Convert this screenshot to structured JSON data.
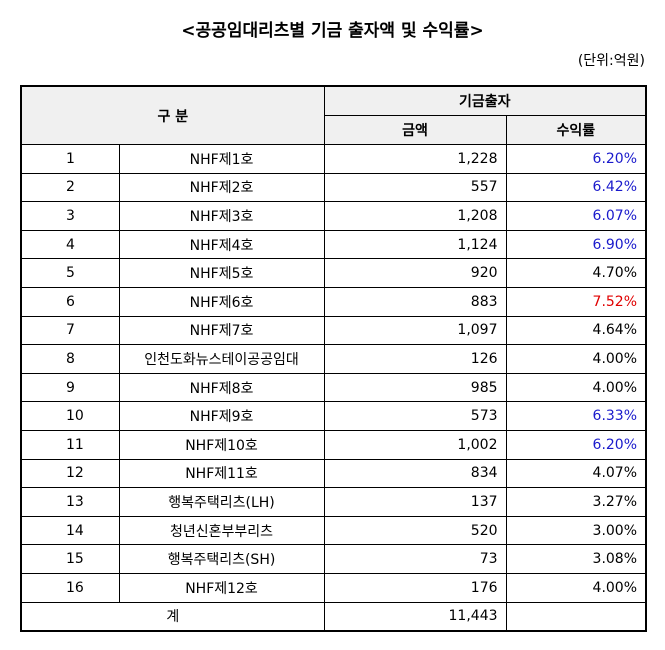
{
  "header": {
    "title": "<공공임대리츠별 기금 출자액 및 수익률>",
    "unit": "(단위:억원)"
  },
  "table": {
    "columns": {
      "group": "구 분",
      "fund": "기금출자",
      "amount": "금액",
      "rate": "수익률"
    },
    "rows": [
      {
        "no": "1",
        "name": "NHF제1호",
        "amount": "1,228",
        "rate": "6.20%",
        "color": "#1a1acc"
      },
      {
        "no": "2",
        "name": "NHF제2호",
        "amount": "557",
        "rate": "6.42%",
        "color": "#1a1acc"
      },
      {
        "no": "3",
        "name": "NHF제3호",
        "amount": "1,208",
        "rate": "6.07%",
        "color": "#1a1acc"
      },
      {
        "no": "4",
        "name": "NHF제4호",
        "amount": "1,124",
        "rate": "6.90%",
        "color": "#1a1acc"
      },
      {
        "no": "5",
        "name": "NHF제5호",
        "amount": "920",
        "rate": "4.70%",
        "color": "#000000"
      },
      {
        "no": "6",
        "name": "NHF제6호",
        "amount": "883",
        "rate": "7.52%",
        "color": "#e00000"
      },
      {
        "no": "7",
        "name": "NHF제7호",
        "amount": "1,097",
        "rate": "4.64%",
        "color": "#000000"
      },
      {
        "no": "8",
        "name": "인천도화뉴스테이공공임대",
        "amount": "126",
        "rate": "4.00%",
        "color": "#000000"
      },
      {
        "no": "9",
        "name": "NHF제8호",
        "amount": "985",
        "rate": "4.00%",
        "color": "#000000"
      },
      {
        "no": "10",
        "name": "NHF제9호",
        "amount": "573",
        "rate": "6.33%",
        "color": "#1a1acc"
      },
      {
        "no": "11",
        "name": "NHF제10호",
        "amount": "1,002",
        "rate": "6.20%",
        "color": "#1a1acc"
      },
      {
        "no": "12",
        "name": "NHF제11호",
        "amount": "834",
        "rate": "4.07%",
        "color": "#000000"
      },
      {
        "no": "13",
        "name": "행복주택리츠(LH)",
        "amount": "137",
        "rate": "3.27%",
        "color": "#000000"
      },
      {
        "no": "14",
        "name": "청년신혼부부리츠",
        "amount": "520",
        "rate": "3.00%",
        "color": "#000000"
      },
      {
        "no": "15",
        "name": "행복주택리츠(SH)",
        "amount": "73",
        "rate": "3.08%",
        "color": "#000000"
      },
      {
        "no": "16",
        "name": "NHF제12호",
        "amount": "176",
        "rate": "4.00%",
        "color": "#000000"
      }
    ],
    "total": {
      "label": "계",
      "amount": "11,443"
    }
  }
}
